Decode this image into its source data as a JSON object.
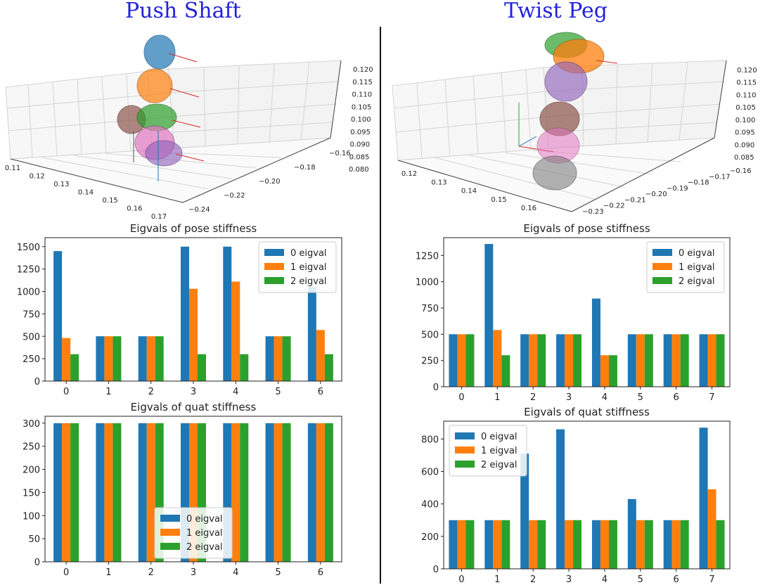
{
  "colors": {
    "s0": "#1f77b4",
    "s1": "#ff7f0e",
    "s2": "#2ca02c",
    "title": "#2222dd"
  },
  "panels": {
    "left": {
      "title": "Push Shaft",
      "scene": {
        "x_ticks": [
          "0.11",
          "0.12",
          "0.13",
          "0.14",
          "0.15",
          "0.16",
          "0.17"
        ],
        "y_ticks": [
          "−0.24",
          "−0.22",
          "−0.20",
          "−0.18",
          "−0.16"
        ],
        "z_ticks": [
          "0.120",
          "0.115",
          "0.110",
          "0.105",
          "0.100",
          "0.095",
          "0.090",
          "0.085",
          "0.080"
        ]
      }
    },
    "right": {
      "title": "Twist Peg",
      "scene": {
        "x_ticks": [
          "0.12",
          "0.13",
          "0.14",
          "0.15",
          "0.16"
        ],
        "y_ticks": [
          "−0.23",
          "−0.22",
          "−0.21",
          "−0.20",
          "−0.19",
          "−0.18",
          "−0.17",
          "−0.16"
        ],
        "z_ticks": [
          "0.120",
          "0.115",
          "0.110",
          "0.105",
          "0.100",
          "0.095",
          "0.090",
          "0.085"
        ]
      }
    }
  },
  "chart_data": [
    {
      "id": "left_pose",
      "type": "bar",
      "title": "Eigvals of pose stiffness",
      "categories": [
        "0",
        "1",
        "2",
        "3",
        "4",
        "5",
        "6"
      ],
      "ylim": [
        0,
        1600
      ],
      "yticks": [
        0,
        250,
        500,
        750,
        1000,
        1250,
        1500
      ],
      "legend_loc": "top-right",
      "series": [
        {
          "name": "0 eigval",
          "values": [
            1450,
            500,
            500,
            1500,
            1500,
            500,
            1050
          ]
        },
        {
          "name": "1 eigval",
          "values": [
            480,
            500,
            500,
            1030,
            1110,
            500,
            570
          ]
        },
        {
          "name": "2 eigval",
          "values": [
            300,
            500,
            500,
            300,
            300,
            500,
            300
          ]
        }
      ]
    },
    {
      "id": "left_quat",
      "type": "bar",
      "title": "Eigvals of quat stiffness",
      "categories": [
        "0",
        "1",
        "2",
        "3",
        "4",
        "5",
        "6"
      ],
      "ylim": [
        0,
        315
      ],
      "yticks": [
        0,
        50,
        100,
        150,
        200,
        250,
        300
      ],
      "legend_loc": "bottom-center",
      "series": [
        {
          "name": "0 eigval",
          "values": [
            300,
            300,
            300,
            300,
            300,
            300,
            300
          ]
        },
        {
          "name": "1 eigval",
          "values": [
            300,
            300,
            300,
            300,
            300,
            300,
            300
          ]
        },
        {
          "name": "2 eigval",
          "values": [
            300,
            300,
            300,
            300,
            300,
            300,
            300
          ]
        }
      ]
    },
    {
      "id": "right_pose",
      "type": "bar",
      "title": "Eigvals of pose stiffness",
      "categories": [
        "0",
        "1",
        "2",
        "3",
        "4",
        "5",
        "6",
        "7"
      ],
      "ylim": [
        0,
        1420
      ],
      "yticks": [
        0,
        250,
        500,
        750,
        1000,
        1250
      ],
      "legend_loc": "top-right",
      "series": [
        {
          "name": "0 eigval",
          "values": [
            500,
            1360,
            500,
            500,
            840,
            500,
            500,
            500
          ]
        },
        {
          "name": "1 eigval",
          "values": [
            500,
            540,
            500,
            500,
            300,
            500,
            500,
            500
          ]
        },
        {
          "name": "2 eigval",
          "values": [
            500,
            300,
            500,
            500,
            300,
            500,
            500,
            500
          ]
        }
      ]
    },
    {
      "id": "right_quat",
      "type": "bar",
      "title": "Eigvals of quat stiffness",
      "categories": [
        "0",
        "1",
        "2",
        "3",
        "4",
        "5",
        "6",
        "7"
      ],
      "ylim": [
        0,
        910
      ],
      "yticks": [
        0,
        200,
        400,
        600,
        800
      ],
      "legend_loc": "top-left",
      "series": [
        {
          "name": "0 eigval",
          "values": [
            300,
            300,
            710,
            860,
            300,
            430,
            300,
            870
          ]
        },
        {
          "name": "1 eigval",
          "values": [
            300,
            300,
            300,
            300,
            300,
            300,
            300,
            490
          ]
        },
        {
          "name": "2 eigval",
          "values": [
            300,
            300,
            300,
            300,
            300,
            300,
            300,
            300
          ]
        }
      ]
    }
  ]
}
